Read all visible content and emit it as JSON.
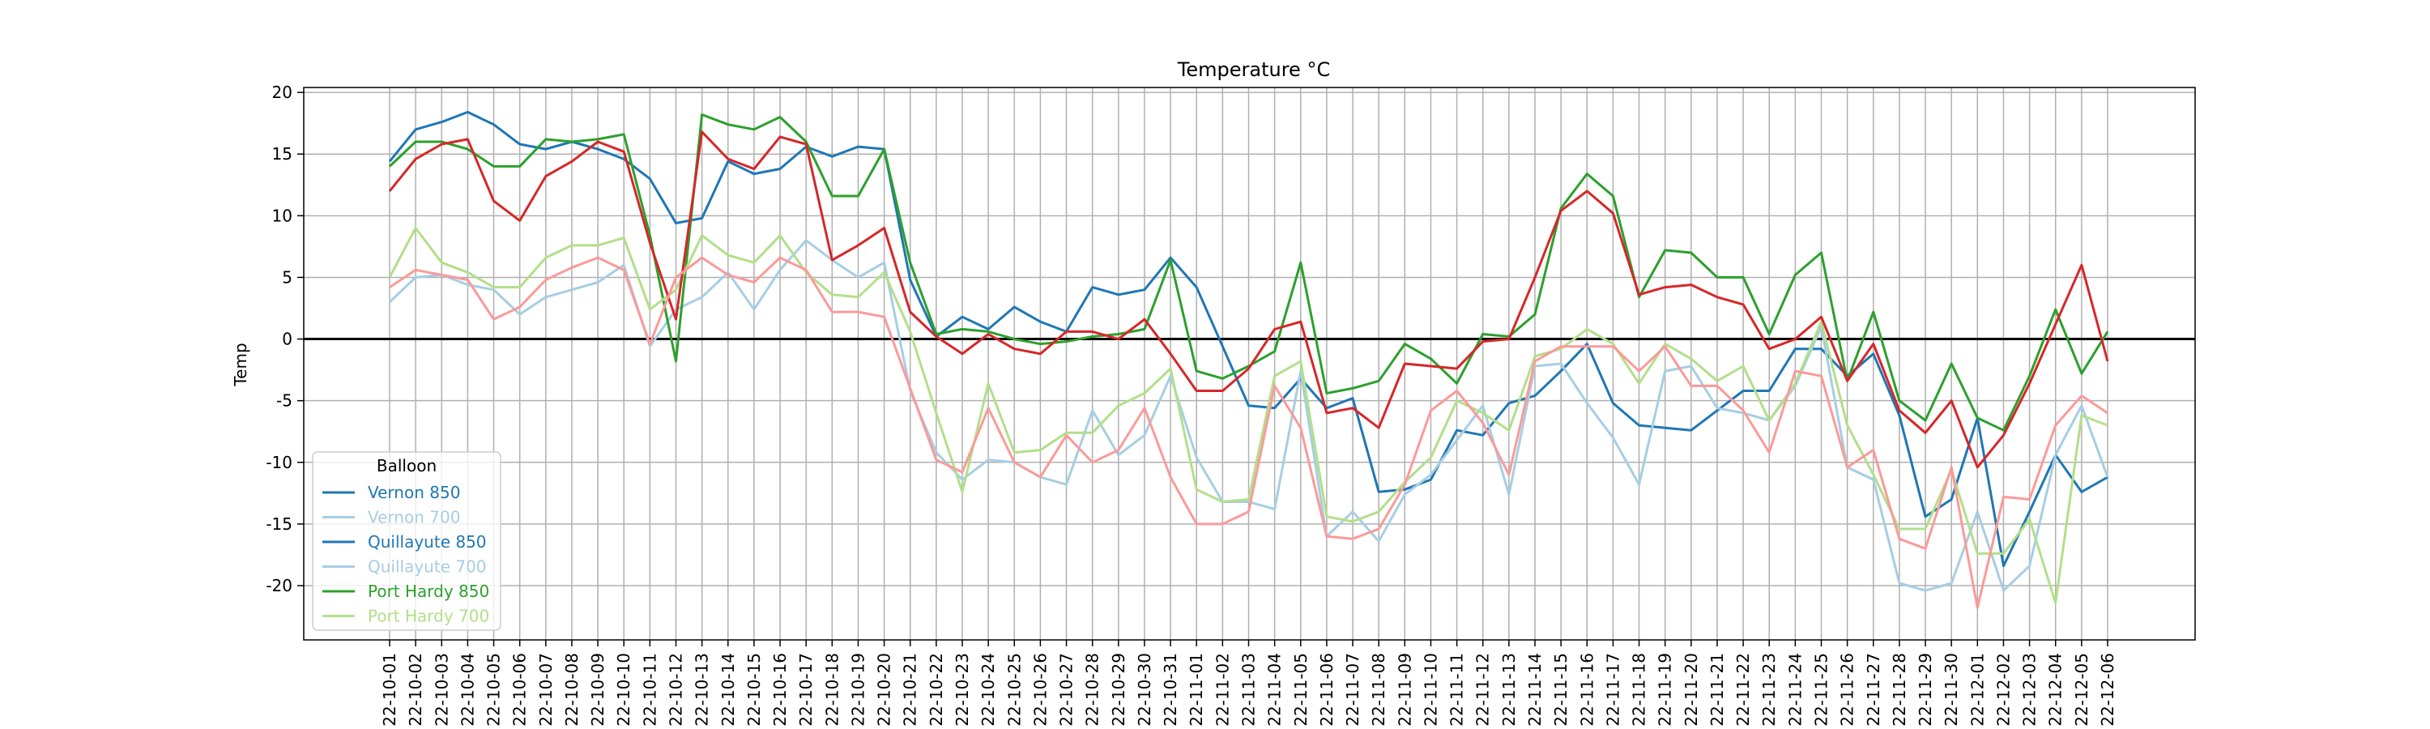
{
  "chart_data": {
    "type": "line",
    "title": "Temperature °C",
    "xlabel": "",
    "ylabel": "Temp",
    "ylim": [
      -24.4,
      20.4
    ],
    "yticks": [
      -20,
      -15,
      -10,
      -5,
      0,
      5,
      10,
      15,
      20
    ],
    "grid": true,
    "zero_line": true,
    "legend": {
      "title": "Balloon",
      "placement": "lower-left"
    },
    "x": [
      "22-10-01",
      "22-10-02",
      "22-10-03",
      "22-10-04",
      "22-10-05",
      "22-10-06",
      "22-10-07",
      "22-10-08",
      "22-10-09",
      "22-10-10",
      "22-10-11",
      "22-10-12",
      "22-10-13",
      "22-10-14",
      "22-10-15",
      "22-10-16",
      "22-10-17",
      "22-10-18",
      "22-10-19",
      "22-10-20",
      "22-10-21",
      "22-10-22",
      "22-10-23",
      "22-10-24",
      "22-10-25",
      "22-10-26",
      "22-10-27",
      "22-10-28",
      "22-10-29",
      "22-10-30",
      "22-10-31",
      "22-11-01",
      "22-11-02",
      "22-11-03",
      "22-11-04",
      "22-11-05",
      "22-11-06",
      "22-11-07",
      "22-11-08",
      "22-11-09",
      "22-11-10",
      "22-11-11",
      "22-11-12",
      "22-11-13",
      "22-11-14",
      "22-11-15",
      "22-11-16",
      "22-11-17",
      "22-11-18",
      "22-11-19",
      "22-11-20",
      "22-11-21",
      "22-11-22",
      "22-11-23",
      "22-11-24",
      "22-11-25",
      "22-11-26",
      "22-11-27",
      "22-11-28",
      "22-11-29",
      "22-11-30",
      "22-12-01",
      "22-12-02",
      "22-12-03",
      "22-12-04",
      "22-12-05",
      "22-12-06"
    ],
    "series": [
      {
        "name": "Vernon 850",
        "color": "#1f77b4",
        "legend_color": "#1f77b4",
        "values": [
          14.4,
          17.0,
          17.6,
          18.4,
          17.4,
          15.8,
          15.4,
          16.0,
          15.4,
          14.6,
          13.0,
          9.4,
          9.8,
          14.4,
          13.4,
          13.8,
          15.6,
          14.8,
          15.6,
          15.4,
          4.8,
          0.2,
          1.8,
          0.8,
          2.6,
          1.4,
          0.6,
          4.2,
          3.6,
          4.0,
          6.6,
          4.2,
          -0.6,
          -5.4,
          -5.6,
          -3.2,
          -5.6,
          -4.8,
          -12.4,
          -12.2,
          -11.4,
          -7.4,
          -7.8,
          -5.2,
          -4.6,
          -2.6,
          -0.4,
          -5.2,
          -7.0,
          -7.2,
          -7.4,
          -5.8,
          -4.2,
          -4.2,
          -0.8,
          -0.8,
          -3.0,
          -1.2,
          -6.2,
          -14.4,
          -13.0,
          -6.4,
          -18.4,
          -14.0,
          -9.4,
          -12.4,
          -11.2
        ]
      },
      {
        "name": "Vernon 700",
        "color": "#a6cee3",
        "legend_color": "#a6cee3",
        "values": [
          3.0,
          5.0,
          5.2,
          4.4,
          4.0,
          2.0,
          3.4,
          4.0,
          4.6,
          6.0,
          -0.6,
          2.4,
          3.4,
          5.4,
          2.4,
          5.6,
          8.0,
          6.4,
          5.0,
          6.2,
          -4.2,
          -9.2,
          -11.4,
          -9.8,
          -10.0,
          -11.2,
          -11.8,
          -5.8,
          -9.4,
          -7.8,
          -3.0,
          -9.6,
          -13.2,
          -13.2,
          -13.8,
          -2.6,
          -16.0,
          -14.0,
          -16.4,
          -12.6,
          -11.0,
          -8.2,
          -5.4,
          -12.6,
          -2.2,
          -2.0,
          -5.2,
          -8.0,
          -11.8,
          -2.6,
          -2.2,
          -5.6,
          -6.0,
          -6.6,
          -3.8,
          1.0,
          -10.4,
          -11.4,
          -19.8,
          -20.4,
          -19.8,
          -14.0,
          -20.4,
          -18.4,
          -9.4,
          -5.4,
          -11.2
        ]
      },
      {
        "name": "Quillayute 850",
        "color": "#2ca02c",
        "legend_color": "#1f77b4",
        "values": [
          14.0,
          16.0,
          16.0,
          15.4,
          14.0,
          14.0,
          16.2,
          16.0,
          16.2,
          16.6,
          8.4,
          -1.8,
          18.2,
          17.4,
          17.0,
          18.0,
          16.0,
          11.6,
          11.6,
          15.4,
          6.2,
          0.4,
          0.8,
          0.6,
          0.0,
          -0.4,
          -0.2,
          0.2,
          0.4,
          0.8,
          6.4,
          -2.6,
          -3.2,
          -2.2,
          -1.0,
          6.2,
          -4.4,
          -4.0,
          -3.4,
          -0.4,
          -1.6,
          -3.6,
          0.4,
          0.2,
          2.0,
          10.6,
          13.4,
          11.6,
          3.4,
          7.2,
          7.0,
          5.0,
          5.0,
          0.4,
          5.2,
          7.0,
          -3.4,
          2.2,
          -5.0,
          -6.6,
          -2.0,
          -6.4,
          -7.4,
          -3.0,
          2.4,
          -2.8,
          0.6
        ]
      },
      {
        "name": "Quillayute 700",
        "color": "#b2df8a",
        "legend_color": "#a6cee3",
        "values": [
          5.0,
          9.0,
          6.2,
          5.4,
          4.2,
          4.2,
          6.6,
          7.6,
          7.6,
          8.2,
          2.4,
          4.0,
          8.4,
          6.8,
          6.2,
          8.4,
          5.4,
          3.6,
          3.4,
          5.4,
          0.6,
          -6.0,
          -12.4,
          -3.6,
          -9.2,
          -9.0,
          -7.6,
          -7.6,
          -5.4,
          -4.4,
          -2.4,
          -12.2,
          -13.2,
          -13.0,
          -3.0,
          -1.8,
          -14.4,
          -14.8,
          -14.0,
          -11.6,
          -9.6,
          -5.0,
          -6.0,
          -7.4,
          -1.4,
          -0.8,
          0.8,
          -0.4,
          -3.6,
          -0.4,
          -1.6,
          -3.4,
          -2.2,
          -6.6,
          -3.6,
          1.4,
          -7.0,
          -11.0,
          -15.4,
          -15.4,
          -10.6,
          -17.4,
          -17.4,
          -14.6,
          -21.4,
          -6.2,
          -7.0
        ]
      },
      {
        "name": "Port Hardy 850",
        "color": "#d62728",
        "legend_color": "#2ca02c",
        "values": [
          12.0,
          14.6,
          15.8,
          16.2,
          11.2,
          9.6,
          13.2,
          14.4,
          16.0,
          15.2,
          7.8,
          1.6,
          16.8,
          14.6,
          13.8,
          16.4,
          15.8,
          6.4,
          7.6,
          9.0,
          2.2,
          0.2,
          -1.2,
          0.4,
          -0.8,
          -1.2,
          0.6,
          0.6,
          0.0,
          1.6,
          -1.2,
          -4.2,
          -4.2,
          -2.4,
          0.8,
          1.4,
          -6.0,
          -5.6,
          -7.2,
          -2.0,
          -2.2,
          -2.4,
          -0.2,
          0.0,
          5.0,
          10.4,
          12.0,
          10.2,
          3.6,
          4.2,
          4.4,
          3.4,
          2.8,
          -0.8,
          0.0,
          1.8,
          -3.4,
          -0.4,
          -5.8,
          -7.6,
          -5.0,
          -10.4,
          -7.8,
          -3.6,
          1.2,
          6.0,
          -1.8
        ]
      },
      {
        "name": "Port Hardy 700",
        "color": "#fb9a99",
        "legend_color": "#b2df8a",
        "values": [
          4.2,
          5.6,
          5.2,
          4.8,
          1.6,
          2.6,
          4.8,
          5.8,
          6.6,
          5.6,
          -0.4,
          5.0,
          6.6,
          5.2,
          4.6,
          6.6,
          5.6,
          2.2,
          2.2,
          1.8,
          -4.0,
          -9.8,
          -10.8,
          -5.6,
          -10.0,
          -11.2,
          -7.8,
          -10.0,
          -9.0,
          -5.6,
          -11.2,
          -15.0,
          -15.0,
          -14.0,
          -3.8,
          -7.2,
          -16.0,
          -16.2,
          -15.4,
          -11.8,
          -5.8,
          -4.2,
          -6.8,
          -11.0,
          -1.8,
          -0.6,
          -0.6,
          -0.6,
          -2.6,
          -0.6,
          -3.8,
          -3.8,
          -5.8,
          -9.2,
          -2.6,
          -3.0,
          -10.4,
          -9.0,
          -16.2,
          -17.0,
          -10.4,
          -21.8,
          -12.8,
          -13.0,
          -7.0,
          -4.6,
          -6.0
        ]
      }
    ]
  }
}
